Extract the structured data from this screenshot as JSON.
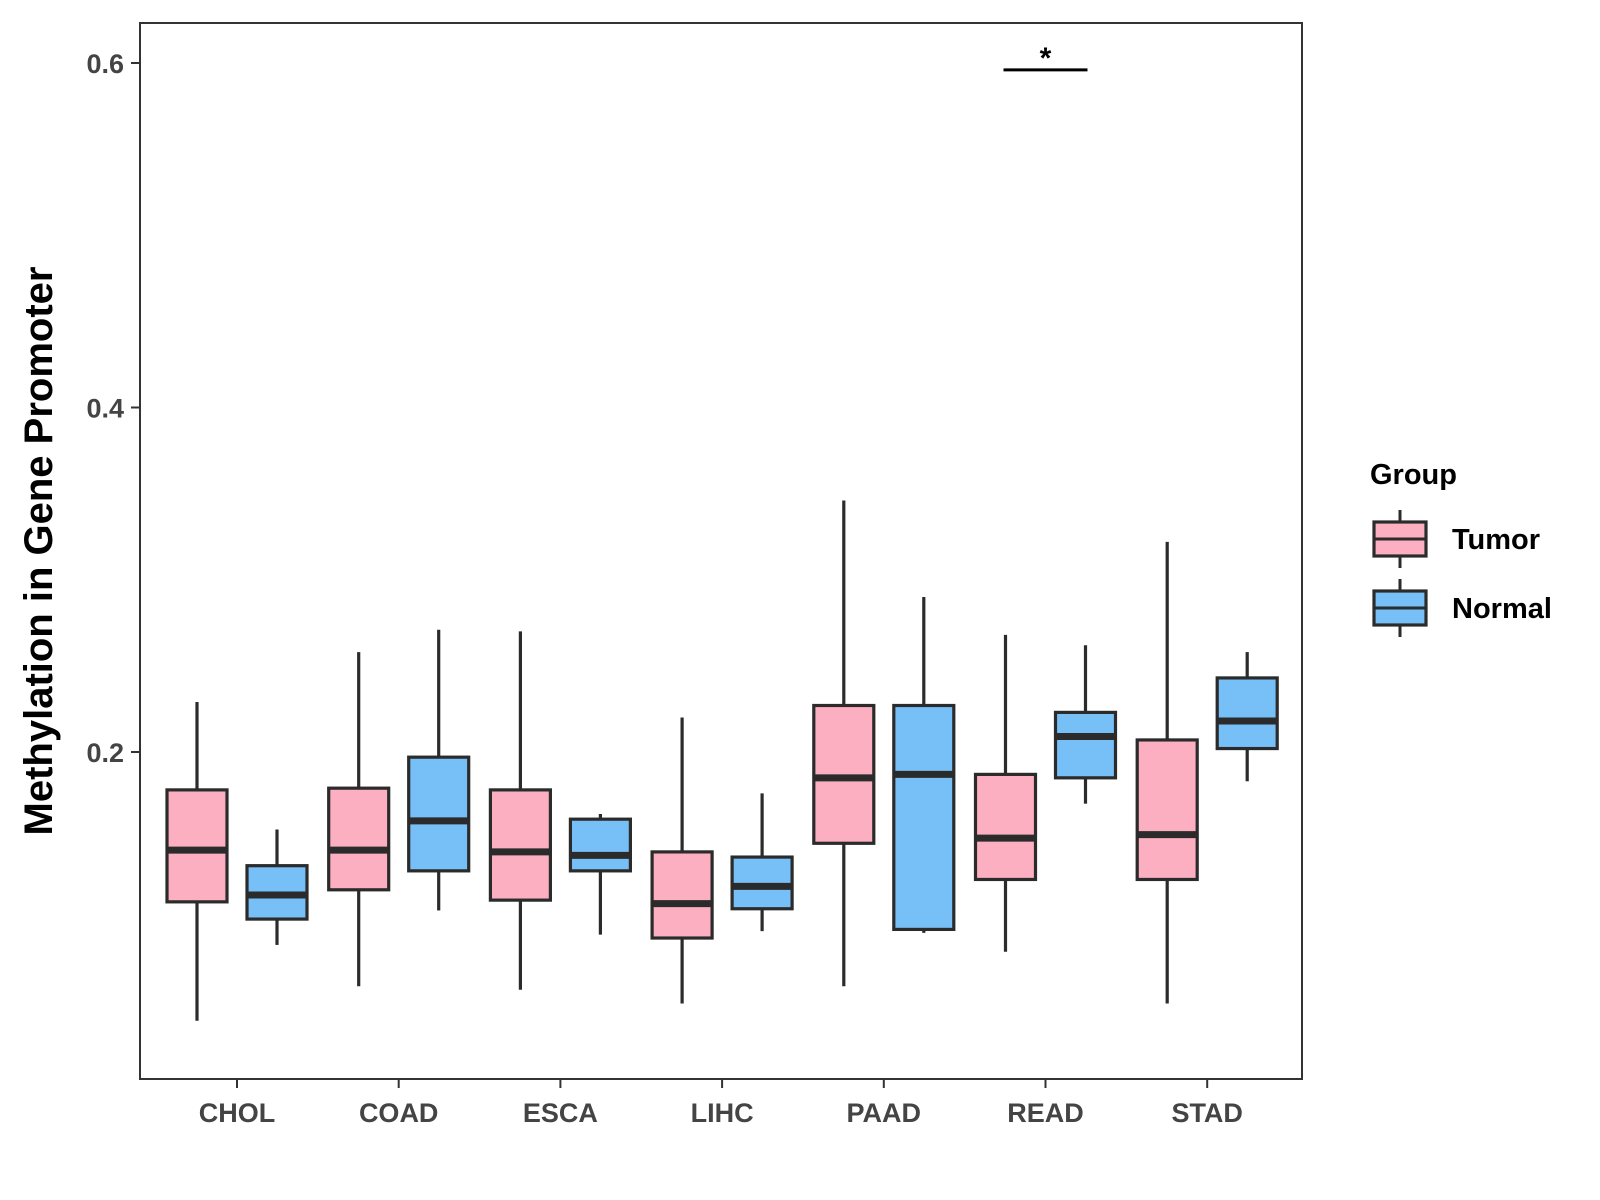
{
  "chart_data": {
    "type": "boxplot",
    "title": "",
    "xlabel": "",
    "ylabel": "Methylation in Gene Promoter",
    "ylim": [
      0.0,
      0.612
    ],
    "yticks": [
      0.2,
      0.4,
      0.6
    ],
    "ytick_labels": [
      "0.2",
      "0.4",
      "0.6"
    ],
    "categories": [
      "CHOL",
      "COAD",
      "ESCA",
      "LIHC",
      "PAAD",
      "READ",
      "STAD"
    ],
    "grid": false,
    "legend": {
      "title": "Group",
      "position": "right",
      "entries": [
        {
          "name": "Tumor",
          "color": "#FBAFC0"
        },
        {
          "name": "Normal",
          "color": "#76BFF7"
        }
      ]
    },
    "series": [
      {
        "name": "Tumor",
        "color": "#FBAFC0",
        "boxes": [
          {
            "category": "CHOL",
            "min": 0.044,
            "q1": 0.113,
            "median": 0.143,
            "q3": 0.178,
            "max": 0.229
          },
          {
            "category": "COAD",
            "min": 0.064,
            "q1": 0.12,
            "median": 0.143,
            "q3": 0.179,
            "max": 0.258
          },
          {
            "category": "ESCA",
            "min": 0.062,
            "q1": 0.114,
            "median": 0.142,
            "q3": 0.178,
            "max": 0.27
          },
          {
            "category": "LIHC",
            "min": 0.054,
            "q1": 0.092,
            "median": 0.112,
            "q3": 0.142,
            "max": 0.22
          },
          {
            "category": "PAAD",
            "min": 0.064,
            "q1": 0.147,
            "median": 0.185,
            "q3": 0.227,
            "max": 0.346
          },
          {
            "category": "READ",
            "min": 0.084,
            "q1": 0.126,
            "median": 0.15,
            "q3": 0.187,
            "max": 0.268
          },
          {
            "category": "STAD",
            "min": 0.054,
            "q1": 0.126,
            "median": 0.152,
            "q3": 0.207,
            "max": 0.322
          }
        ]
      },
      {
        "name": "Normal",
        "color": "#76BFF7",
        "boxes": [
          {
            "category": "CHOL",
            "min": 0.088,
            "q1": 0.103,
            "median": 0.117,
            "q3": 0.134,
            "max": 0.155
          },
          {
            "category": "COAD",
            "min": 0.108,
            "q1": 0.131,
            "median": 0.16,
            "q3": 0.197,
            "max": 0.271
          },
          {
            "category": "ESCA",
            "min": 0.094,
            "q1": 0.131,
            "median": 0.14,
            "q3": 0.161,
            "max": 0.164
          },
          {
            "category": "LIHC",
            "min": 0.096,
            "q1": 0.109,
            "median": 0.122,
            "q3": 0.139,
            "max": 0.176
          },
          {
            "category": "PAAD",
            "min": 0.095,
            "q1": 0.097,
            "median": 0.187,
            "q3": 0.227,
            "max": 0.29
          },
          {
            "category": "READ",
            "min": 0.17,
            "q1": 0.185,
            "median": 0.209,
            "q3": 0.223,
            "max": 0.262
          },
          {
            "category": "STAD",
            "min": 0.183,
            "q1": 0.202,
            "median": 0.218,
            "q3": 0.243,
            "max": 0.258
          }
        ]
      }
    ],
    "annotations": [
      {
        "category": "READ",
        "text": "*",
        "bracket_y": 0.596
      }
    ]
  }
}
